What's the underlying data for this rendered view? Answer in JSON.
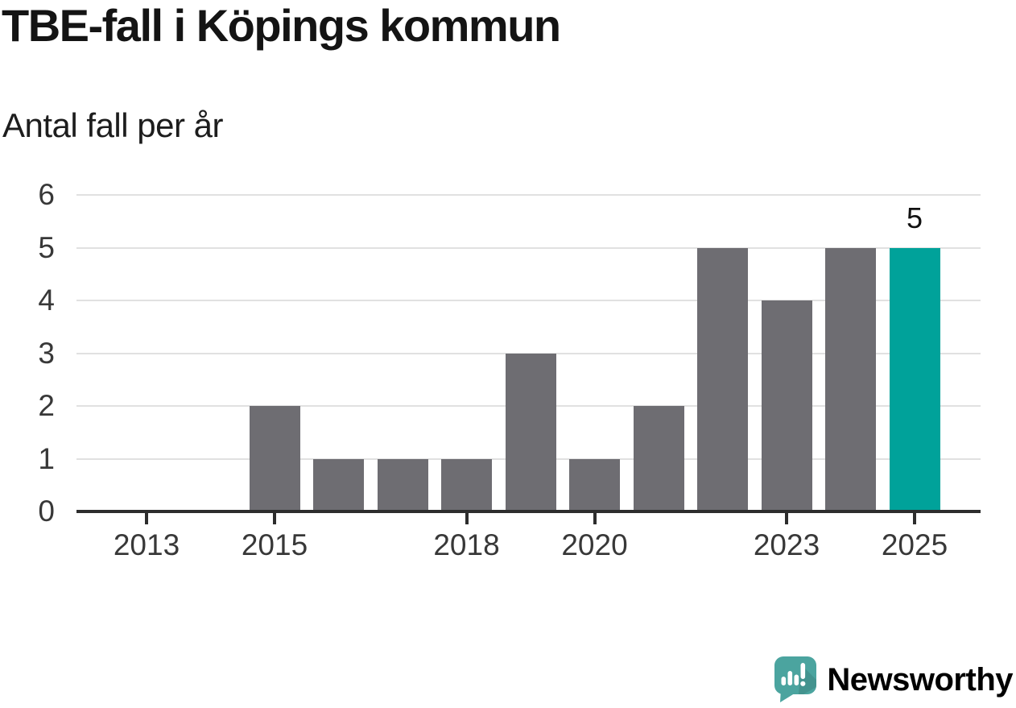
{
  "chart_data": {
    "type": "bar",
    "title": "TBE-fall i Köpings kommun",
    "subtitle": "Antal fall per år",
    "categories": [
      2013,
      2014,
      2015,
      2016,
      2017,
      2018,
      2019,
      2020,
      2021,
      2022,
      2023,
      2024,
      2025
    ],
    "values": [
      0,
      0,
      2,
      1,
      1,
      1,
      3,
      1,
      2,
      5,
      4,
      5,
      5
    ],
    "ylim": [
      0,
      6
    ],
    "yticks": [
      0,
      1,
      2,
      3,
      4,
      5,
      6
    ],
    "xticks": [
      2013,
      2015,
      2018,
      2020,
      2023,
      2025
    ],
    "grid": true,
    "legend": "none",
    "bar_color": "#6E6D72",
    "highlight": {
      "category": 2025,
      "value": 5,
      "label": "5",
      "color": "#00A29A"
    }
  },
  "colors": {
    "background": "#ffffff",
    "gridline": "#e1e1e1",
    "axis": "#2d2d2d",
    "axis_text": "#383838",
    "title_text": "#141414",
    "bar_gray": "#6E6D72",
    "bar_highlight_teal": "#00A29A",
    "brand_teal": "#4BA49F"
  },
  "footer": {
    "brand": "Newsworthy"
  }
}
